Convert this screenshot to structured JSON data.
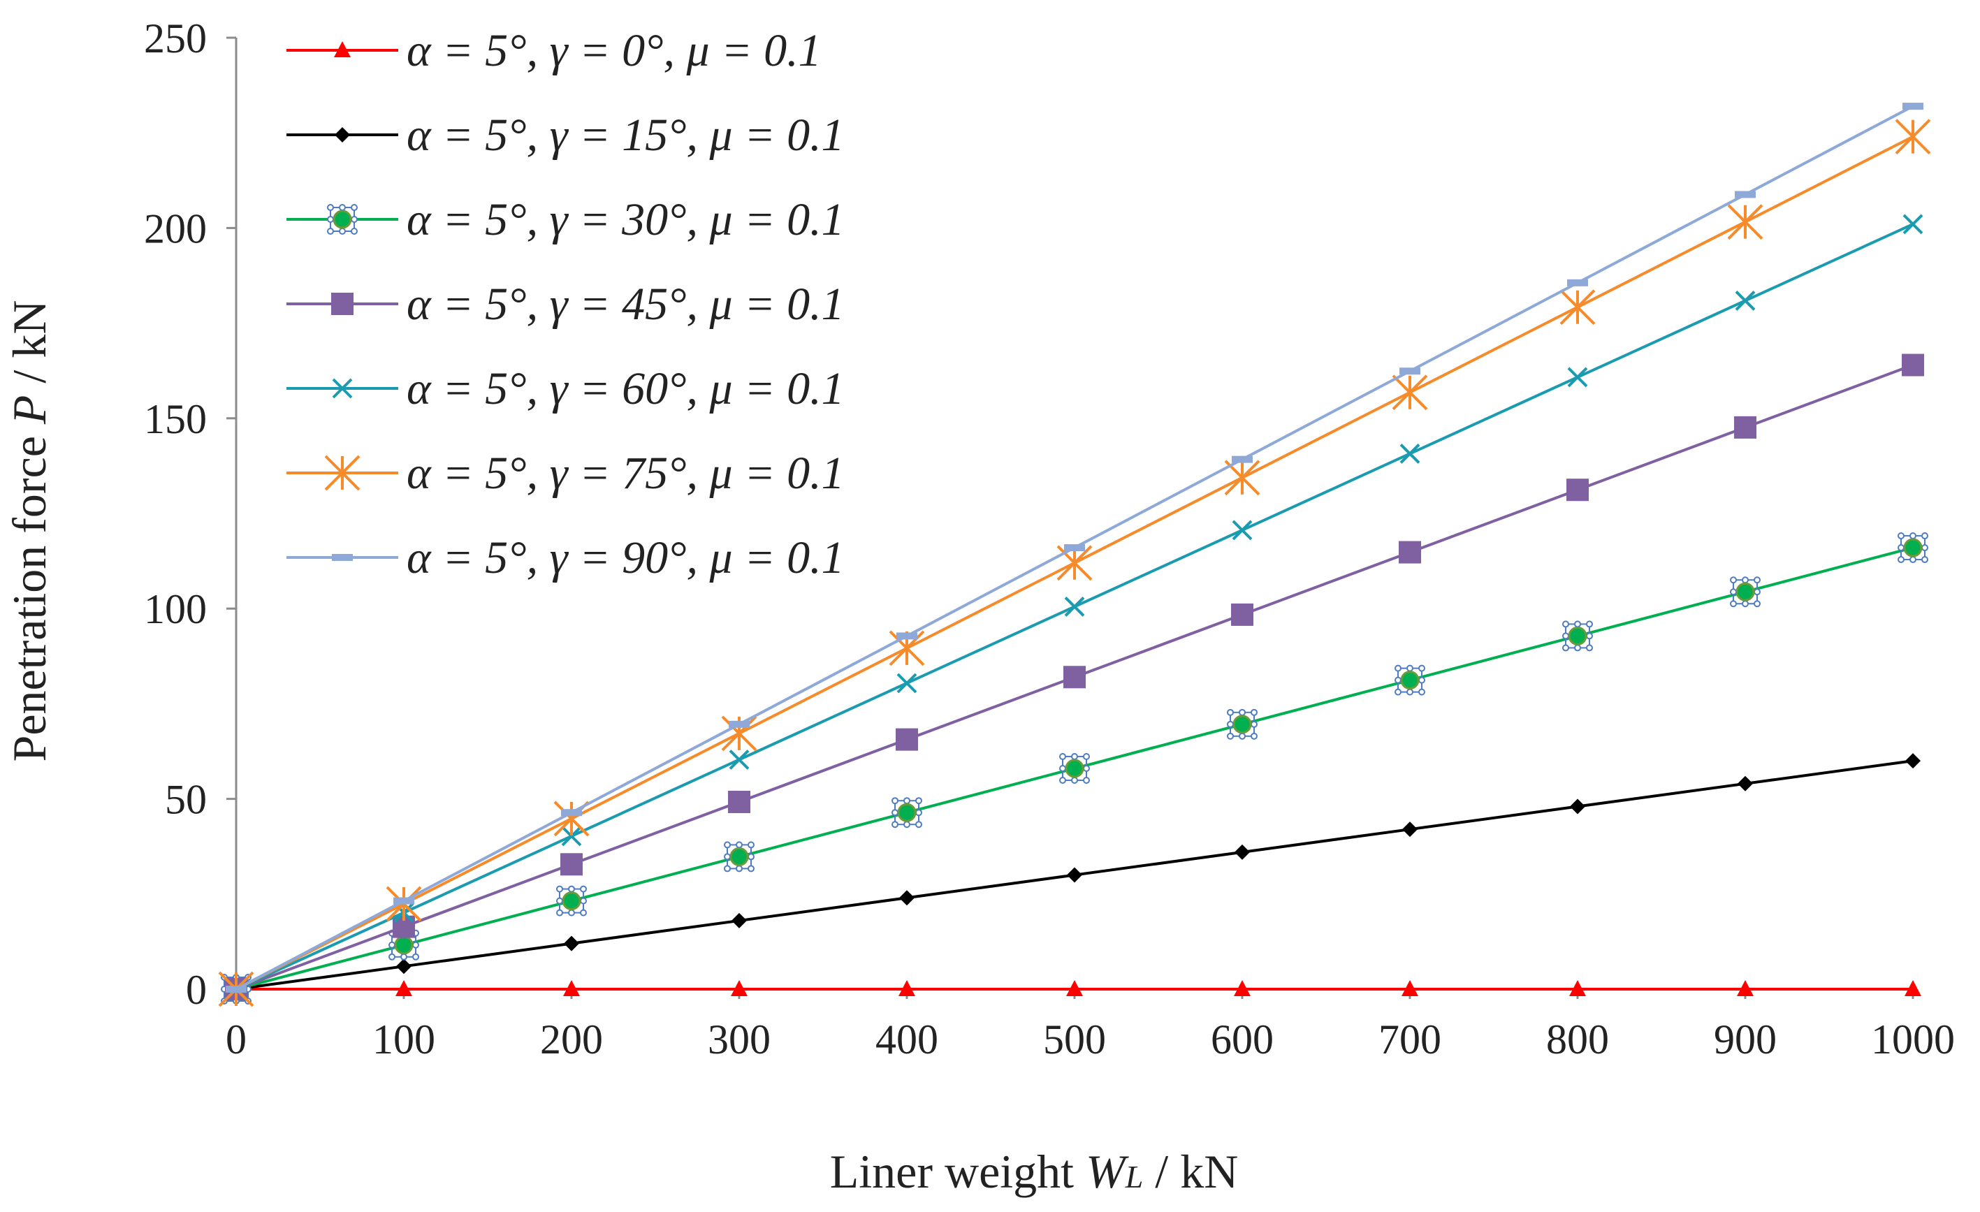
{
  "chart_data": {
    "type": "line",
    "title": "",
    "xlabel_prefix": "Liner weight ",
    "xlabel_var": "W",
    "xlabel_sub": "L",
    "xlabel_unit": " / kN",
    "ylabel_prefix": "Penetration force ",
    "ylabel_var": "P",
    "ylabel_unit": " / kN",
    "x": [
      0,
      100,
      200,
      300,
      400,
      500,
      600,
      700,
      800,
      900,
      1000
    ],
    "x_ticks": [
      "0",
      "100",
      "200",
      "300",
      "400",
      "500",
      "600",
      "700",
      "800",
      "900",
      "1000"
    ],
    "y_ticks": [
      "0",
      "50",
      "100",
      "150",
      "200",
      "250"
    ],
    "xlim": [
      0,
      1000
    ],
    "ylim": [
      0,
      250
    ],
    "grid": false,
    "legend_position": "top-left",
    "series": [
      {
        "name": "α = 5°, γ = 0°, μ = 0.1",
        "color": "#ff0000",
        "marker": "triangle",
        "values": [
          0,
          0,
          0,
          0,
          0,
          0,
          0,
          0,
          0,
          0,
          0
        ]
      },
      {
        "name": "α = 5°, γ = 15°, μ = 0.1",
        "color": "#000000",
        "marker": "diamond",
        "values": [
          0,
          6,
          12,
          18,
          24,
          30,
          36,
          42,
          48,
          54,
          60
        ]
      },
      {
        "name": "α = 5°, γ = 30°, μ = 0.1",
        "color": "#00b050",
        "marker": "circle",
        "values": [
          0,
          11.6,
          23.2,
          34.8,
          46.4,
          58,
          69.6,
          81.2,
          92.8,
          104.4,
          116
        ]
      },
      {
        "name": "α = 5°, γ = 45°, μ = 0.1",
        "color": "#7f60a0",
        "marker": "square",
        "values": [
          0,
          16.4,
          32.8,
          49.2,
          65.6,
          82,
          98.4,
          114.8,
          131.2,
          147.6,
          164
        ]
      },
      {
        "name": "α = 5°, γ = 60°, μ = 0.1",
        "color": "#1a9bb0",
        "marker": "x",
        "values": [
          0,
          20.1,
          40.2,
          60.3,
          80.4,
          100.5,
          120.6,
          140.7,
          160.8,
          180.9,
          201
        ]
      },
      {
        "name": "α = 5°, γ = 75°, μ = 0.1",
        "color": "#f58b2a",
        "marker": "star",
        "values": [
          0,
          22.4,
          44.8,
          67.2,
          89.6,
          112,
          134.4,
          156.8,
          179.2,
          201.6,
          224
        ]
      },
      {
        "name": "α = 5°, γ = 90°, μ = 0.1",
        "color": "#8ea9d8",
        "marker": "dash",
        "values": [
          0,
          23.2,
          46.4,
          69.6,
          92.8,
          116,
          139.2,
          162.4,
          185.6,
          208.8,
          232
        ]
      }
    ]
  }
}
